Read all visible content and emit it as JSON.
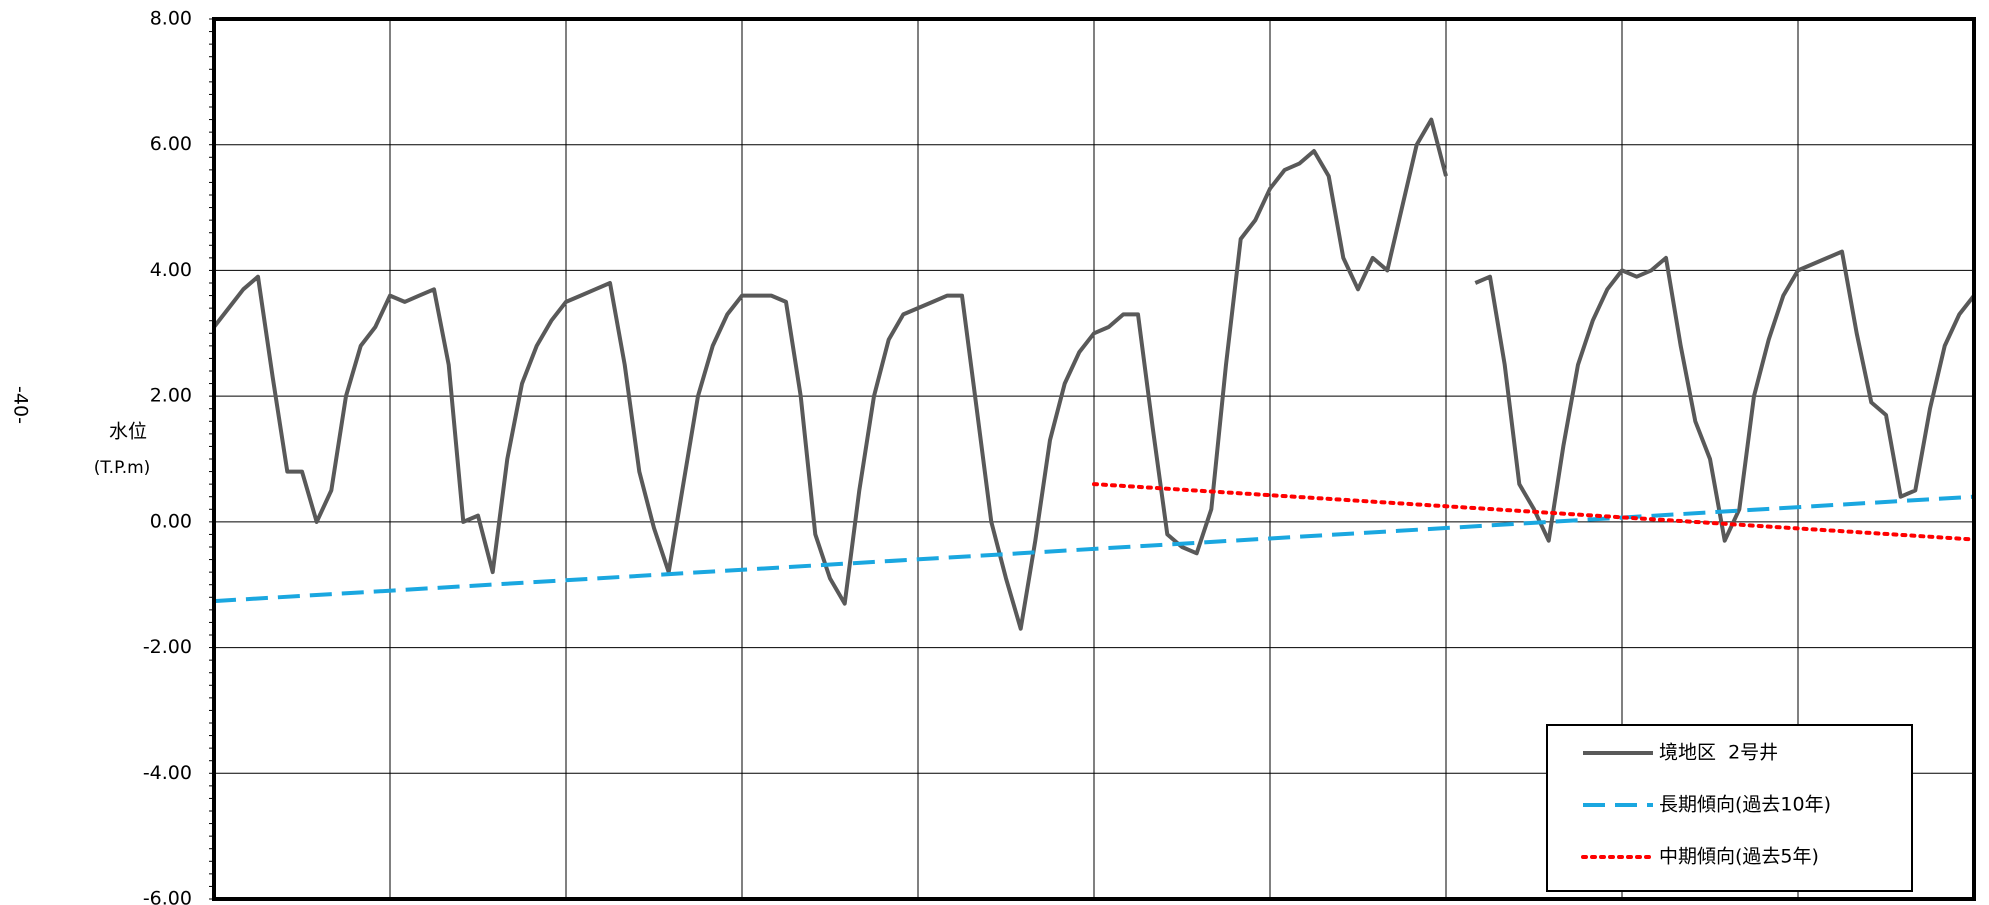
{
  "page_mark": "-40-",
  "chart_data": {
    "type": "line",
    "y_label": "水位",
    "y_unit": "(T.P.m)",
    "ylim": [
      -6,
      8
    ],
    "yticks": [
      {
        "value": -6,
        "label": "-6.00"
      },
      {
        "value": -4,
        "label": "-4.00"
      },
      {
        "value": -2,
        "label": "-2.00"
      },
      {
        "value": 0,
        "label": "0.00"
      },
      {
        "value": 2,
        "label": "2.00"
      },
      {
        "value": 4,
        "label": "4.00"
      },
      {
        "value": 6,
        "label": "6.00"
      },
      {
        "value": 8,
        "label": "8.00"
      }
    ],
    "x_divisions": 10,
    "grid": true,
    "legend": "lower right",
    "series": [
      {
        "name": "境地区  2号井",
        "color": "#595959",
        "style": "solid",
        "values": [
          3.1,
          3.4,
          3.7,
          3.9,
          2.3,
          0.8,
          0.8,
          0.0,
          0.5,
          2.0,
          2.8,
          3.1,
          3.6,
          3.5,
          3.6,
          3.7,
          2.5,
          0.0,
          0.1,
          -0.8,
          1.0,
          2.2,
          2.8,
          3.2,
          3.5,
          3.6,
          3.7,
          3.8,
          2.5,
          0.8,
          -0.1,
          -0.8,
          0.6,
          2.0,
          2.8,
          3.3,
          3.6,
          3.6,
          3.6,
          3.5,
          2.0,
          -0.2,
          -0.9,
          -1.3,
          0.5,
          2.0,
          2.9,
          3.3,
          3.4,
          3.5,
          3.6,
          3.6,
          1.8,
          0.0,
          -0.9,
          -1.7,
          -0.3,
          1.3,
          2.2,
          2.7,
          3.0,
          3.1,
          3.3,
          3.3,
          1.5,
          -0.2,
          -0.4,
          -0.5,
          0.2,
          2.5,
          4.5,
          4.8,
          5.3,
          5.6,
          5.7,
          5.9,
          5.5,
          4.2,
          3.7,
          4.2,
          4.0,
          5.0,
          6.0,
          6.4,
          5.5,
          null,
          3.8,
          3.9,
          2.5,
          0.6,
          0.2,
          -0.3,
          1.2,
          2.5,
          3.2,
          3.7,
          4.0,
          3.9,
          4.0,
          4.2,
          2.8,
          1.6,
          1.0,
          -0.3,
          0.2,
          2.0,
          2.9,
          3.6,
          4.0,
          4.1,
          4.2,
          4.3,
          3.0,
          1.9,
          1.7,
          0.4,
          0.5,
          1.8,
          2.8,
          3.3,
          3.6
        ]
      },
      {
        "name": "長期傾向(過去10年)",
        "color": "#1aa7e0",
        "style": "dashed",
        "x": [
          0,
          120
        ],
        "values": [
          -1.26,
          0.4
        ]
      },
      {
        "name": "中期傾向(過去5年)",
        "color": "#ff0000",
        "style": "dotted",
        "x": [
          60,
          120
        ],
        "values": [
          0.6,
          -0.28
        ]
      }
    ]
  }
}
